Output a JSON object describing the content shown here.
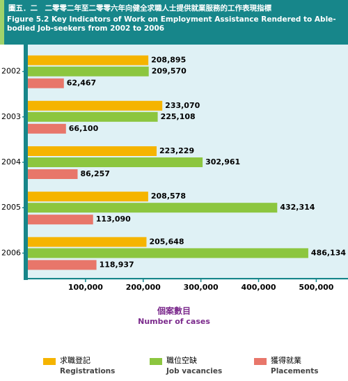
{
  "chart_data": {
    "type": "hbar",
    "title": "圖五．二　二零零二年至二零零六年向健全求職人士提供就業服務的工作表現指標",
    "subtitle": "Figure 5.2  Key Indicators of Work on Employment Assistance Rendered to Able-bodied Job-seekers from 2002 to 2006",
    "x_label": "個案數目",
    "x_label_en": "Number of cases",
    "categories": [
      "2002",
      "2003",
      "2004",
      "2005",
      "2006"
    ],
    "series": [
      {
        "name": "求職登記",
        "name_en": "Registrations",
        "color": "#f5b400",
        "values": [
          208895,
          233070,
          223229,
          208578,
          205648
        ],
        "value_labels": [
          "208,895",
          "233,070",
          "223,229",
          "208,578",
          "205,648"
        ]
      },
      {
        "name": "職位空缺",
        "name_en": "Job vacancies",
        "color": "#8cc63f",
        "values": [
          209570,
          225108,
          302961,
          432314,
          486134
        ],
        "value_labels": [
          "209,570",
          "225,108",
          "302,961",
          "432,314",
          "486,134"
        ]
      },
      {
        "name": "獲得就業",
        "name_en": "Placements",
        "color": "#e8766a",
        "values": [
          62467,
          66100,
          86257,
          113090,
          118937
        ],
        "value_labels": [
          "62,467",
          "66,100",
          "86,257",
          "113,090",
          "118,937"
        ]
      }
    ],
    "xlim": [
      0,
      555000
    ],
    "xticks": [
      {
        "value": 100000,
        "label": "100,000"
      },
      {
        "value": 200000,
        "label": "200,000"
      },
      {
        "value": 300000,
        "label": "300,000"
      },
      {
        "value": 400000,
        "label": "400,000"
      },
      {
        "value": 500000,
        "label": "500,000"
      }
    ]
  }
}
